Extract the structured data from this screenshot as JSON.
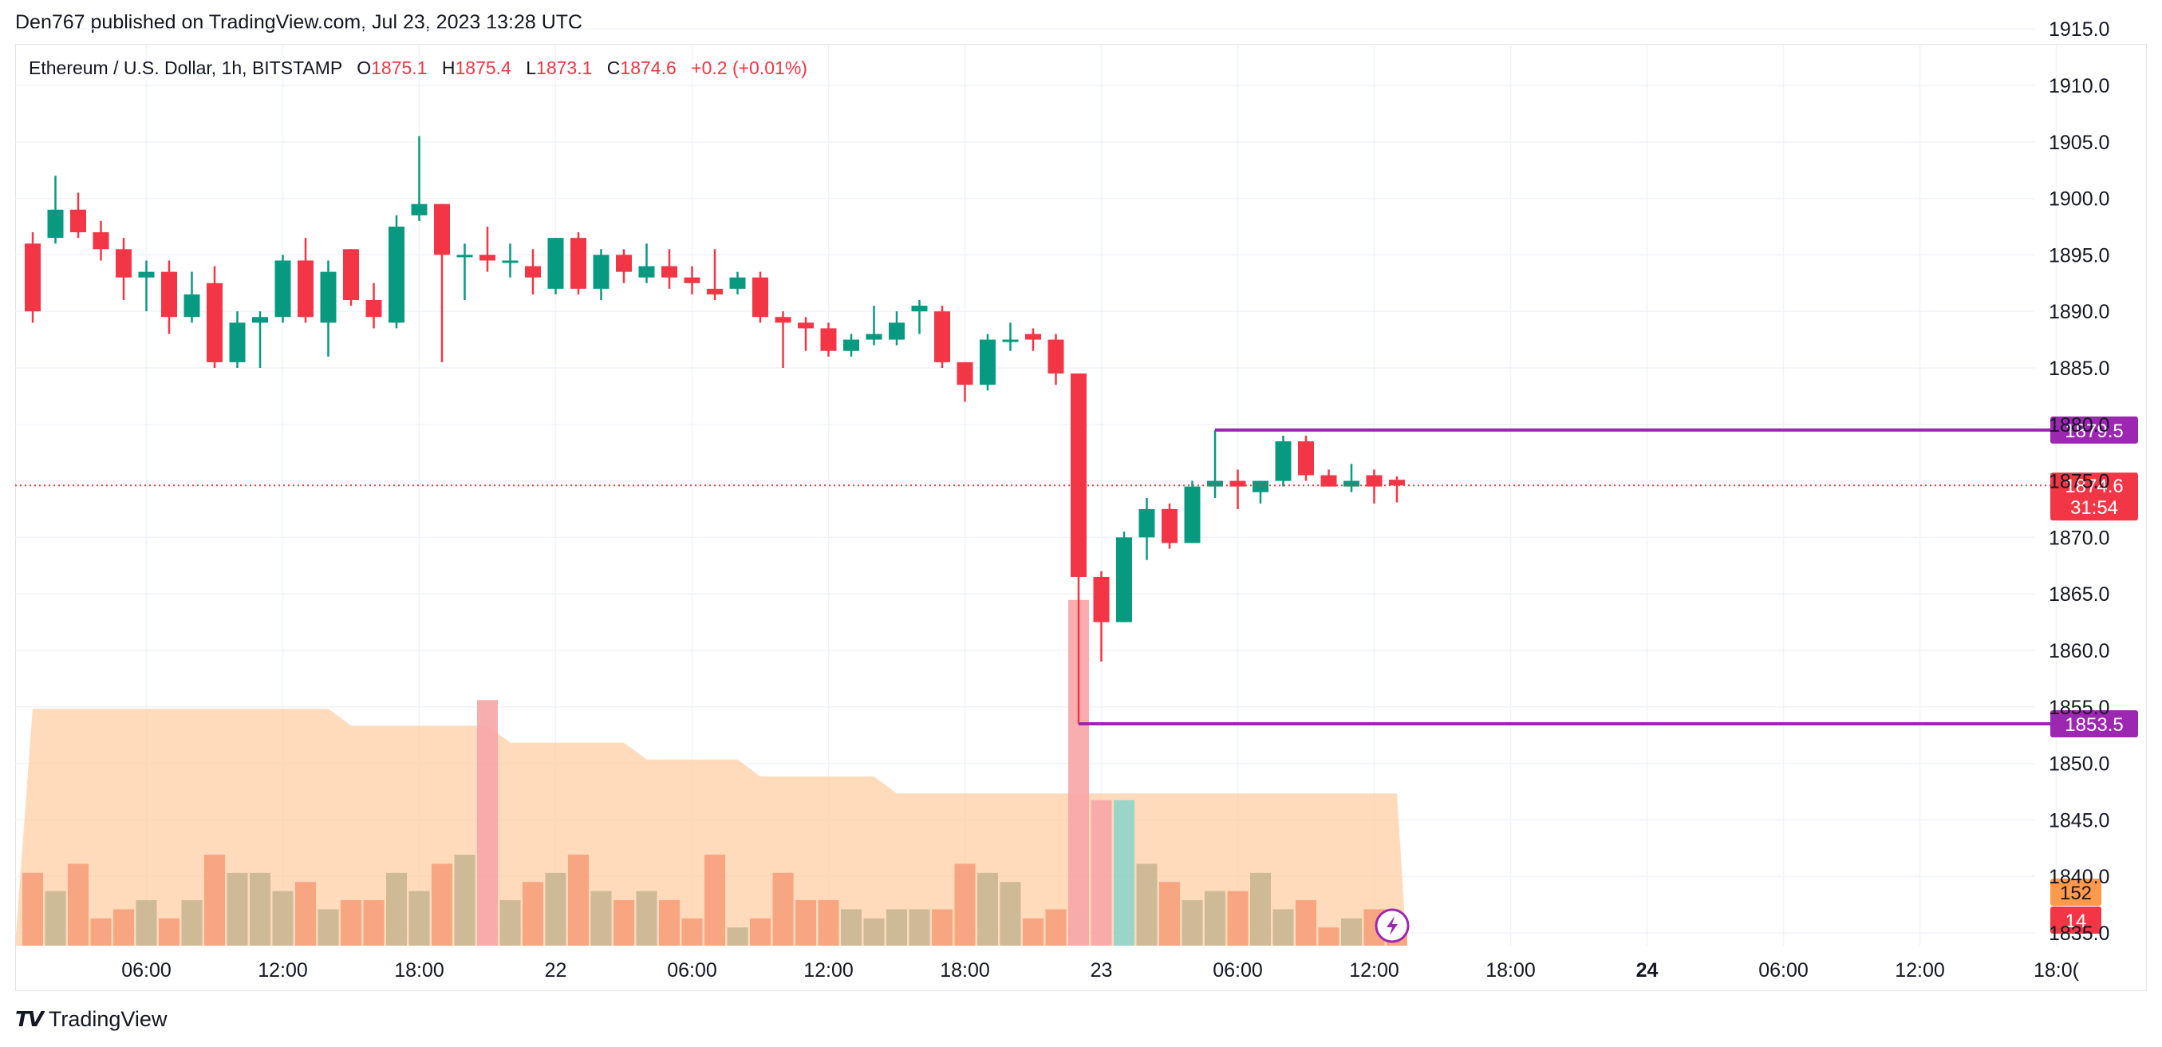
{
  "header": {
    "published": "Den767 published on TradingView.com, Jul 23, 2023 13:28 UTC"
  },
  "legend": {
    "symbol": "Ethereum / U.S. Dollar, 1h, BITSTAMP",
    "o_label": "O",
    "o_value": "1875.1",
    "h_label": "H",
    "h_value": "1875.4",
    "l_label": "L",
    "l_value": "1873.1",
    "c_label": "C",
    "c_value": "1874.6",
    "change": "+0.2 (+0.01%)"
  },
  "footer": {
    "brand": "TradingView"
  },
  "colors": {
    "up": "#089981",
    "down": "#f23645",
    "level": "#9c27b0",
    "grid": "#f0f3fa",
    "volume_up": "#c9b691",
    "volume_down": "#f6a07a",
    "volume_ma": "#ffcc9f",
    "orange_badge": "#ff9a4d"
  },
  "chart_data": {
    "type": "candlestick",
    "symbol": "ETH/USD",
    "interval": "1h",
    "ylim": [
      1835.0,
      1916.0
    ],
    "y_ticks": [
      "1915.0",
      "1910.0",
      "1905.0",
      "1900.0",
      "1895.0",
      "1890.0",
      "1885.0",
      "1880.0",
      "1875.0",
      "1870.0",
      "1865.0",
      "1860.0",
      "1855.0",
      "1850.0",
      "1845.0",
      "1840.0",
      "1835.0"
    ],
    "x_ticks": [
      {
        "index": 5,
        "label": "06:00"
      },
      {
        "index": 11,
        "label": "12:00"
      },
      {
        "index": 17,
        "label": "18:00"
      },
      {
        "index": 23,
        "label": "22",
        "bold": false
      },
      {
        "index": 29,
        "label": "06:00"
      },
      {
        "index": 35,
        "label": "12:00"
      },
      {
        "index": 41,
        "label": "18:00"
      },
      {
        "index": 47,
        "label": "23"
      },
      {
        "index": 53,
        "label": "06:00"
      },
      {
        "index": 59,
        "label": "12:00"
      },
      {
        "index": 65,
        "label": "18:00"
      },
      {
        "index": 71,
        "label": "24",
        "bold": true
      },
      {
        "index": 77,
        "label": "06:00"
      },
      {
        "index": 83,
        "label": "12:00"
      },
      {
        "index": 89,
        "label": "18:0("
      }
    ],
    "candles": [
      {
        "o": 1896.0,
        "h": 1897.0,
        "l": 1889.0,
        "c": 1890.0
      },
      {
        "o": 1896.5,
        "h": 1902.0,
        "l": 1896.0,
        "c": 1899.0
      },
      {
        "o": 1899.0,
        "h": 1900.5,
        "l": 1896.5,
        "c": 1897.0
      },
      {
        "o": 1897.0,
        "h": 1898.0,
        "l": 1894.5,
        "c": 1895.5
      },
      {
        "o": 1895.5,
        "h": 1896.5,
        "l": 1891.0,
        "c": 1893.0
      },
      {
        "o": 1893.0,
        "h": 1894.5,
        "l": 1890.0,
        "c": 1893.5
      },
      {
        "o": 1893.5,
        "h": 1894.5,
        "l": 1888.0,
        "c": 1889.5
      },
      {
        "o": 1889.5,
        "h": 1893.5,
        "l": 1889.0,
        "c": 1891.5
      },
      {
        "o": 1892.5,
        "h": 1894.0,
        "l": 1885.0,
        "c": 1885.5
      },
      {
        "o": 1885.5,
        "h": 1890.0,
        "l": 1885.0,
        "c": 1889.0
      },
      {
        "o": 1889.0,
        "h": 1890.0,
        "l": 1885.0,
        "c": 1889.5
      },
      {
        "o": 1889.5,
        "h": 1895.0,
        "l": 1889.0,
        "c": 1894.5
      },
      {
        "o": 1894.5,
        "h": 1896.5,
        "l": 1889.0,
        "c": 1889.5
      },
      {
        "o": 1889.0,
        "h": 1894.5,
        "l": 1886.0,
        "c": 1893.5
      },
      {
        "o": 1895.5,
        "h": 1895.5,
        "l": 1890.5,
        "c": 1891.0
      },
      {
        "o": 1891.0,
        "h": 1892.5,
        "l": 1888.5,
        "c": 1889.5
      },
      {
        "o": 1889.0,
        "h": 1898.5,
        "l": 1888.5,
        "c": 1897.5
      },
      {
        "o": 1898.5,
        "h": 1905.5,
        "l": 1898.0,
        "c": 1899.5
      },
      {
        "o": 1899.5,
        "h": 1899.5,
        "l": 1885.5,
        "c": 1895.0
      },
      {
        "o": 1895.0,
        "h": 1896.0,
        "l": 1891.0,
        "c": 1895.0
      },
      {
        "o": 1895.0,
        "h": 1897.5,
        "l": 1893.5,
        "c": 1894.5
      },
      {
        "o": 1894.5,
        "h": 1896.0,
        "l": 1893.0,
        "c": 1894.5
      },
      {
        "o": 1894.0,
        "h": 1895.5,
        "l": 1891.5,
        "c": 1893.0
      },
      {
        "o": 1892.0,
        "h": 1896.5,
        "l": 1891.5,
        "c": 1896.5
      },
      {
        "o": 1896.5,
        "h": 1897.0,
        "l": 1891.5,
        "c": 1892.0
      },
      {
        "o": 1892.0,
        "h": 1895.5,
        "l": 1891.0,
        "c": 1895.0
      },
      {
        "o": 1895.0,
        "h": 1895.5,
        "l": 1892.5,
        "c": 1893.5
      },
      {
        "o": 1893.0,
        "h": 1896.0,
        "l": 1892.5,
        "c": 1894.0
      },
      {
        "o": 1894.0,
        "h": 1895.5,
        "l": 1892.0,
        "c": 1893.0
      },
      {
        "o": 1893.0,
        "h": 1894.0,
        "l": 1891.5,
        "c": 1892.5
      },
      {
        "o": 1892.0,
        "h": 1895.5,
        "l": 1891.0,
        "c": 1891.5
      },
      {
        "o": 1892.0,
        "h": 1893.5,
        "l": 1891.5,
        "c": 1893.0
      },
      {
        "o": 1893.0,
        "h": 1893.5,
        "l": 1889.0,
        "c": 1889.5
      },
      {
        "o": 1889.5,
        "h": 1890.0,
        "l": 1885.0,
        "c": 1889.0
      },
      {
        "o": 1889.0,
        "h": 1889.5,
        "l": 1886.5,
        "c": 1888.5
      },
      {
        "o": 1888.5,
        "h": 1889.0,
        "l": 1886.0,
        "c": 1886.5
      },
      {
        "o": 1886.5,
        "h": 1888.0,
        "l": 1886.0,
        "c": 1887.5
      },
      {
        "o": 1887.5,
        "h": 1890.5,
        "l": 1887.0,
        "c": 1888.0
      },
      {
        "o": 1887.5,
        "h": 1890.0,
        "l": 1887.0,
        "c": 1889.0
      },
      {
        "o": 1890.0,
        "h": 1891.0,
        "l": 1888.0,
        "c": 1890.5
      },
      {
        "o": 1890.0,
        "h": 1890.5,
        "l": 1885.0,
        "c": 1885.5
      },
      {
        "o": 1885.5,
        "h": 1885.5,
        "l": 1882.0,
        "c": 1883.5
      },
      {
        "o": 1883.5,
        "h": 1888.0,
        "l": 1883.0,
        "c": 1887.5
      },
      {
        "o": 1887.5,
        "h": 1889.0,
        "l": 1886.5,
        "c": 1887.5
      },
      {
        "o": 1888.0,
        "h": 1888.5,
        "l": 1886.5,
        "c": 1887.5
      },
      {
        "o": 1887.5,
        "h": 1888.0,
        "l": 1883.5,
        "c": 1884.5
      },
      {
        "o": 1884.5,
        "h": 1884.5,
        "l": 1853.5,
        "c": 1866.5
      },
      {
        "o": 1866.5,
        "h": 1867.0,
        "l": 1859.0,
        "c": 1862.5
      },
      {
        "o": 1862.5,
        "h": 1870.5,
        "l": 1862.5,
        "c": 1870.0
      },
      {
        "o": 1870.0,
        "h": 1873.5,
        "l": 1868.0,
        "c": 1872.5
      },
      {
        "o": 1872.5,
        "h": 1873.0,
        "l": 1869.0,
        "c": 1869.5
      },
      {
        "o": 1869.5,
        "h": 1875.0,
        "l": 1869.5,
        "c": 1874.5
      },
      {
        "o": 1874.5,
        "h": 1879.5,
        "l": 1873.5,
        "c": 1875.0
      },
      {
        "o": 1875.0,
        "h": 1876.0,
        "l": 1872.5,
        "c": 1874.5
      },
      {
        "o": 1874.0,
        "h": 1875.0,
        "l": 1873.0,
        "c": 1875.0
      },
      {
        "o": 1875.0,
        "h": 1879.0,
        "l": 1874.5,
        "c": 1878.5
      },
      {
        "o": 1878.5,
        "h": 1879.0,
        "l": 1875.0,
        "c": 1875.5
      },
      {
        "o": 1875.5,
        "h": 1876.0,
        "l": 1874.5,
        "c": 1874.5
      },
      {
        "o": 1874.5,
        "h": 1876.5,
        "l": 1874.0,
        "c": 1875.0
      },
      {
        "o": 1875.5,
        "h": 1876.0,
        "l": 1873.0,
        "c": 1874.5
      },
      {
        "o": 1875.1,
        "h": 1875.4,
        "l": 1873.1,
        "c": 1874.6
      }
    ],
    "volume": [
      8,
      6,
      9,
      3,
      4,
      5,
      3,
      5,
      10,
      8,
      8,
      6,
      7,
      4,
      5,
      5,
      8,
      6,
      9,
      10,
      27,
      5,
      7,
      8,
      10,
      6,
      5,
      6,
      5,
      3,
      10,
      2,
      3,
      8,
      5,
      5,
      4,
      3,
      4,
      4,
      4,
      9,
      8,
      7,
      3,
      4,
      38,
      16,
      16,
      9,
      7,
      5,
      6,
      6,
      8,
      4,
      5,
      2,
      3,
      4,
      2
    ],
    "volume_ma": [
      14,
      14,
      14,
      14,
      14,
      14,
      14,
      14,
      14,
      14,
      14,
      14,
      14,
      14,
      13,
      13,
      13,
      13,
      13,
      13,
      13,
      12,
      12,
      12,
      12,
      12,
      12,
      11,
      11,
      11,
      11,
      11,
      10,
      10,
      10,
      10,
      10,
      10,
      9,
      9,
      9,
      9,
      9,
      9,
      9,
      9,
      9,
      9,
      9,
      9,
      9,
      9,
      9,
      9,
      9,
      9,
      9,
      9,
      9,
      9,
      9
    ],
    "horizontal_levels": [
      {
        "value": 1879.5,
        "label": "1879.5",
        "start_index": 52
      },
      {
        "value": 1853.5,
        "label": "1853.5",
        "start_index": 46
      }
    ],
    "last_price": {
      "value": 1874.6,
      "label": "1874.6",
      "countdown": "31:54"
    },
    "volume_badges": [
      {
        "label": "152"
      },
      {
        "label": "14"
      }
    ]
  }
}
